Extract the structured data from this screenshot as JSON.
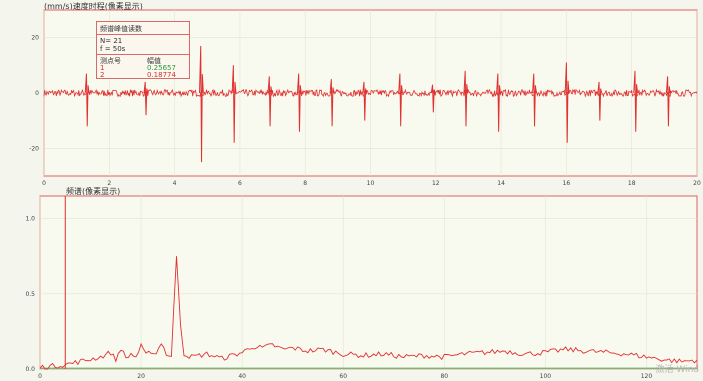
{
  "top_panel": {
    "title": "(mm/s)速度时程(像素显示)"
  },
  "peak_box": {
    "header": "频谱峰值读数",
    "n_line": "N= 21",
    "f_line": "f = 50s",
    "col1": "测点号",
    "col2": "幅值",
    "rows": [
      {
        "id": "1",
        "value": "0.25657",
        "color": "#2a9a3a"
      },
      {
        "id": "2",
        "value": "0.18774",
        "color": "#d03030"
      }
    ]
  },
  "bottom_panel": {
    "title": "频谱(像素显示)"
  },
  "watermark": "激活 Wind",
  "colors": {
    "signal": "#e03030",
    "grid": "#e3e6cf",
    "border": "#e06060",
    "baseline": "#6cb86c"
  },
  "chart_data": [
    {
      "type": "line",
      "title": "(mm/s)速度时程(像素显示)",
      "xlim": [
        0,
        20
      ],
      "ylim": [
        -30,
        30
      ],
      "x_ticks": [
        0,
        2,
        4,
        6,
        8,
        10,
        12,
        14,
        16,
        18,
        20
      ],
      "y_ticks": [
        20,
        0,
        -20
      ],
      "series": [
        {
          "baseline": 0,
          "noise_amplitude": 1.2,
          "spikes": [
            {
              "x": 1.3,
              "y": 7,
              "y_neg": -12
            },
            {
              "x": 3.1,
              "y": 4,
              "y_neg": -8
            },
            {
              "x": 4.8,
              "y": 17,
              "y_neg": -25
            },
            {
              "x": 5.8,
              "y": 10,
              "y_neg": -18
            },
            {
              "x": 6.9,
              "y": 6,
              "y_neg": -12
            },
            {
              "x": 7.8,
              "y": 7,
              "y_neg": -14
            },
            {
              "x": 8.8,
              "y": 5,
              "y_neg": -12
            },
            {
              "x": 9.8,
              "y": 4,
              "y_neg": -10
            },
            {
              "x": 10.9,
              "y": 7,
              "y_neg": -12
            },
            {
              "x": 11.9,
              "y": 3,
              "y_neg": -7
            },
            {
              "x": 12.9,
              "y": 8,
              "y_neg": -12
            },
            {
              "x": 13.9,
              "y": 7,
              "y_neg": -14
            },
            {
              "x": 15.0,
              "y": 7,
              "y_neg": -12
            },
            {
              "x": 16.0,
              "y": 11,
              "y_neg": -18
            },
            {
              "x": 17.0,
              "y": 4,
              "y_neg": -10
            },
            {
              "x": 18.1,
              "y": 8,
              "y_neg": -14
            },
            {
              "x": 19.1,
              "y": 6,
              "y_neg": -12
            }
          ]
        }
      ]
    },
    {
      "type": "line",
      "title": "频谱(像素显示)",
      "xlim": [
        0,
        130
      ],
      "ylim": [
        0,
        1.15
      ],
      "x_ticks": [
        0,
        20,
        40,
        60,
        80,
        100,
        120
      ],
      "y_ticks": [
        1.0,
        0.5,
        0
      ],
      "series": [
        {
          "points": [
            [
              0,
              0.01
            ],
            [
              5,
              0.03
            ],
            [
              8,
              0.05
            ],
            [
              12,
              0.08
            ],
            [
              14,
              0.11
            ],
            [
              15,
              0.06
            ],
            [
              16,
              0.14
            ],
            [
              17,
              0.07
            ],
            [
              18,
              0.1
            ],
            [
              19,
              0.08
            ],
            [
              20,
              0.15
            ],
            [
              21,
              0.09
            ],
            [
              22,
              0.12
            ],
            [
              23,
              0.1
            ],
            [
              24,
              0.18
            ],
            [
              25,
              0.1
            ],
            [
              26,
              0.08
            ],
            [
              27,
              0.75
            ],
            [
              27.8,
              0.3
            ],
            [
              28.5,
              0.1
            ],
            [
              30,
              0.08
            ],
            [
              33,
              0.1
            ],
            [
              36,
              0.07
            ],
            [
              38,
              0.09
            ],
            [
              40,
              0.11
            ],
            [
              42,
              0.15
            ],
            [
              44,
              0.14
            ],
            [
              46,
              0.16
            ],
            [
              48,
              0.13
            ],
            [
              50,
              0.14
            ],
            [
              53,
              0.12
            ],
            [
              56,
              0.13
            ],
            [
              60,
              0.1
            ],
            [
              64,
              0.09
            ],
            [
              68,
              0.1
            ],
            [
              72,
              0.08
            ],
            [
              76,
              0.09
            ],
            [
              80,
              0.08
            ],
            [
              84,
              0.1
            ],
            [
              88,
              0.11
            ],
            [
              92,
              0.12
            ],
            [
              96,
              0.1
            ],
            [
              100,
              0.11
            ],
            [
              104,
              0.13
            ],
            [
              108,
              0.12
            ],
            [
              112,
              0.11
            ],
            [
              116,
              0.1
            ],
            [
              120,
              0.08
            ],
            [
              124,
              0.06
            ],
            [
              127,
              0.05
            ],
            [
              130,
              0.06
            ]
          ]
        }
      ]
    }
  ]
}
